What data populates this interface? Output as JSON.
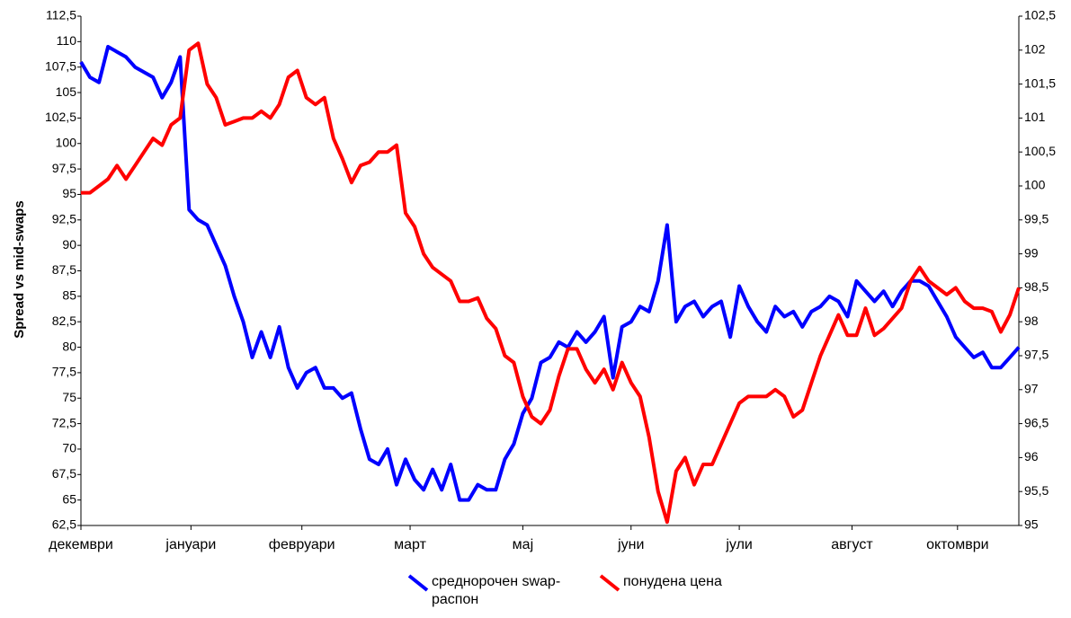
{
  "chart_data": {
    "type": "line",
    "y_label": "Spread vs mid-swaps",
    "xlim": [
      0,
      104
    ],
    "xticks": [
      {
        "value": 0,
        "label": "декември"
      },
      {
        "value": 12.2,
        "label": "јануари"
      },
      {
        "value": 24.5,
        "label": "февруари"
      },
      {
        "value": 36.5,
        "label": "март"
      },
      {
        "value": 49,
        "label": "мај"
      },
      {
        "value": 61,
        "label": "јуни"
      },
      {
        "value": 73,
        "label": "јули"
      },
      {
        "value": 85.5,
        "label": "август"
      },
      {
        "value": 97.2,
        "label": "октомври"
      }
    ],
    "ylim": [
      62.5,
      112.5
    ],
    "yticks": [
      {
        "value": 62.5,
        "label": "62,5"
      },
      65,
      {
        "value": 67.5,
        "label": "67,5"
      },
      70,
      {
        "value": 72.5,
        "label": "72,5"
      },
      75,
      {
        "value": 77.5,
        "label": "77,5"
      },
      80,
      {
        "value": 82.5,
        "label": "82,5"
      },
      85,
      {
        "value": 87.5,
        "label": "87,5"
      },
      90,
      {
        "value": 92.5,
        "label": "92,5"
      },
      95,
      {
        "value": 97.5,
        "label": "97,5"
      },
      100,
      {
        "value": 102.5,
        "label": "102,5"
      },
      105,
      {
        "value": 107.5,
        "label": "107,5"
      },
      110,
      {
        "value": 112.5,
        "label": "112,5"
      }
    ],
    "y2lim": [
      95,
      102.5
    ],
    "y2ticks": [
      95,
      {
        "value": 95.5,
        "label": "95,5"
      },
      96,
      {
        "value": 96.5,
        "label": "96,5"
      },
      97,
      {
        "value": 97.5,
        "label": "97,5"
      },
      98,
      {
        "value": 98.5,
        "label": "98,5"
      },
      99,
      {
        "value": 99.5,
        "label": "99,5"
      },
      100,
      {
        "value": 100.5,
        "label": "100,5"
      },
      101,
      {
        "value": 101.5,
        "label": "101,5"
      },
      102,
      {
        "value": 102.5,
        "label": "102,5"
      }
    ],
    "grid": false,
    "legend": "bottom",
    "series": [
      {
        "name": "среднорочен swap-распон",
        "color": "#0000ff",
        "axis": "y",
        "values": [
          108,
          106.5,
          106,
          109.5,
          109,
          108.5,
          107.5,
          107,
          106.5,
          104.5,
          106,
          108.5,
          93.5,
          92.5,
          92,
          90,
          88,
          85,
          82.5,
          79,
          81.5,
          79,
          82,
          78,
          76,
          77.5,
          78,
          76,
          76,
          75,
          75.5,
          72,
          69,
          68.5,
          70,
          66.5,
          69,
          67,
          66,
          68,
          66,
          68.5,
          65,
          65,
          66.5,
          66,
          66,
          69,
          70.5,
          73.5,
          75,
          78.5,
          79,
          80.5,
          80,
          81.5,
          80.5,
          81.5,
          83,
          77,
          82,
          82.5,
          84,
          83.5,
          86.5,
          92,
          82.5,
          84,
          84.5,
          83,
          84,
          84.5,
          81,
          86,
          84,
          82.5,
          81.5,
          84,
          83,
          83.5,
          82,
          83.5,
          84,
          85,
          84.5,
          83,
          86.5,
          85.5,
          84.5,
          85.5,
          84,
          85.5,
          86.5,
          86.5,
          86,
          84.5,
          83,
          81,
          80,
          79,
          79.5,
          78,
          78,
          79,
          80
        ]
      },
      {
        "name": "понудена цена",
        "color": "#ff0000",
        "axis": "y2",
        "values": [
          99.9,
          99.9,
          100,
          100.1,
          100.3,
          100.1,
          100.3,
          100.5,
          100.7,
          100.6,
          100.9,
          101,
          102,
          102.1,
          101.5,
          101.3,
          100.9,
          100.95,
          101,
          101,
          101.1,
          101,
          101.2,
          101.6,
          101.7,
          101.3,
          101.2,
          101.3,
          100.7,
          100.4,
          100.05,
          100.3,
          100.35,
          100.5,
          100.5,
          100.6,
          99.6,
          99.4,
          99,
          98.8,
          98.7,
          98.6,
          98.3,
          98.3,
          98.35,
          98.05,
          97.9,
          97.5,
          97.4,
          96.9,
          96.6,
          96.5,
          96.7,
          97.2,
          97.6,
          97.6,
          97.3,
          97.1,
          97.3,
          97,
          97.4,
          97.1,
          96.9,
          96.3,
          95.5,
          95.05,
          95.8,
          96,
          95.6,
          95.9,
          95.9,
          96.2,
          96.5,
          96.8,
          96.9,
          96.9,
          96.9,
          97,
          96.9,
          96.6,
          96.7,
          97.1,
          97.5,
          97.8,
          98.1,
          97.8,
          97.8,
          98.2,
          97.8,
          97.9,
          98.05,
          98.2,
          98.6,
          98.8,
          98.6,
          98.5,
          98.4,
          98.5,
          98.3,
          98.2,
          98.2,
          98.15,
          97.85,
          98.1,
          98.5
        ]
      }
    ]
  }
}
